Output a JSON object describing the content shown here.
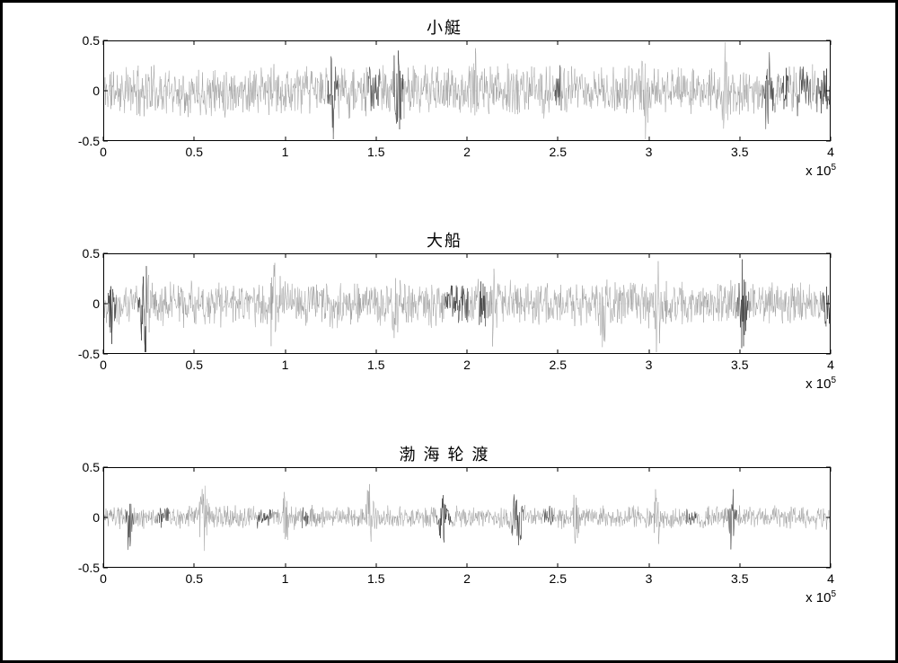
{
  "background_color": "#ffffff",
  "border_color": "#000000",
  "panels": [
    {
      "title": "小艇",
      "signal_color_light": "#9e9e9e",
      "signal_color_dark": "#404040",
      "noise_amplitude": 0.18,
      "spike_amplitude": 0.42,
      "spike_positions": [
        1.26,
        1.62,
        2.05,
        2.98,
        3.42,
        3.66
      ],
      "dark_spike_positions": [
        1.26,
        1.62,
        3.66
      ],
      "ylim": [
        -0.5,
        0.5
      ],
      "yticks": [
        -0.5,
        0,
        0.5
      ],
      "xlim": [
        0,
        4
      ],
      "xticks": [
        0,
        0.5,
        1,
        1.5,
        2,
        2.5,
        3,
        3.5,
        4
      ],
      "x_multiplier": "x 10^5",
      "seed": 11
    },
    {
      "title": "大船",
      "signal_color_light": "#9e9e9e",
      "signal_color_dark": "#404040",
      "noise_amplitude": 0.16,
      "spike_amplitude": 0.4,
      "spike_positions": [
        0.05,
        0.22,
        0.94,
        1.6,
        2.15,
        2.75,
        3.05,
        3.52
      ],
      "dark_spike_positions": [
        0.05,
        0.22,
        3.52
      ],
      "ylim": [
        -0.5,
        0.5
      ],
      "yticks": [
        -0.5,
        0,
        0.5
      ],
      "xlim": [
        0,
        4
      ],
      "xticks": [
        0,
        0.5,
        1,
        1.5,
        2,
        2.5,
        3,
        3.5,
        4
      ],
      "x_multiplier": "x 10^5",
      "seed": 22
    },
    {
      "title": "渤 海 轮 渡",
      "signal_color_light": "#9e9e9e",
      "signal_color_dark": "#404040",
      "noise_amplitude": 0.08,
      "spike_amplitude": 0.32,
      "spike_positions": [
        0.14,
        0.55,
        1.0,
        1.46,
        1.86,
        2.28,
        2.6,
        3.05,
        3.46
      ],
      "dark_spike_positions": [
        0.14,
        1.86,
        2.28,
        3.46
      ],
      "ylim": [
        -0.5,
        0.5
      ],
      "yticks": [
        -0.5,
        0,
        0.5
      ],
      "xlim": [
        0,
        4
      ],
      "xticks": [
        0,
        0.5,
        1,
        1.5,
        2,
        2.5,
        3,
        3.5,
        4
      ],
      "x_multiplier": "x 10^5",
      "seed": 33
    }
  ]
}
